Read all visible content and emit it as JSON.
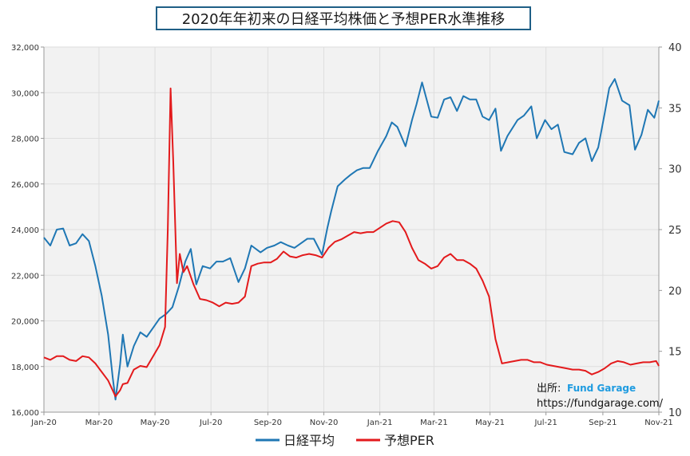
{
  "chart_data": {
    "type": "line",
    "title": "2020年年初来の日経平均株価と予想PER水準推移",
    "x_tick_labels": [
      "Jan-20",
      "Mar-20",
      "May-20",
      "Jul-20",
      "Sep-20",
      "Nov-20",
      "Jan-21",
      "Mar-21",
      "May-21",
      "Jul-21",
      "Sep-21",
      "Nov-21"
    ],
    "y_left": {
      "min": 16000,
      "max": 32000,
      "ticks": [
        "16,000",
        "18,000",
        "20,000",
        "22,000",
        "24,000",
        "26,000",
        "28,000",
        "30,000",
        "32,000"
      ]
    },
    "y_right": {
      "min": 10,
      "max": 40,
      "ticks": [
        "10",
        "15",
        "20",
        "25",
        "30",
        "35",
        "40"
      ]
    },
    "grid": true,
    "legend_position": "bottom",
    "series": [
      {
        "name": "日経平均",
        "color": "#1f77b4",
        "axis": "left",
        "points": [
          [
            "2020-01-01",
            23650
          ],
          [
            "2020-01-08",
            23300
          ],
          [
            "2020-01-15",
            24000
          ],
          [
            "2020-01-22",
            24050
          ],
          [
            "2020-01-29",
            23300
          ],
          [
            "2020-02-05",
            23400
          ],
          [
            "2020-02-12",
            23800
          ],
          [
            "2020-02-19",
            23500
          ],
          [
            "2020-02-26",
            22400
          ],
          [
            "2020-03-04",
            21100
          ],
          [
            "2020-03-11",
            19400
          ],
          [
            "2020-03-16",
            17500
          ],
          [
            "2020-03-19",
            16550
          ],
          [
            "2020-03-24",
            18100
          ],
          [
            "2020-03-27",
            19400
          ],
          [
            "2020-04-01",
            18000
          ],
          [
            "2020-04-08",
            18900
          ],
          [
            "2020-04-15",
            19500
          ],
          [
            "2020-04-22",
            19300
          ],
          [
            "2020-04-29",
            19700
          ],
          [
            "2020-05-06",
            20100
          ],
          [
            "2020-05-13",
            20300
          ],
          [
            "2020-05-20",
            20600
          ],
          [
            "2020-05-27",
            21500
          ],
          [
            "2020-06-03",
            22600
          ],
          [
            "2020-06-09",
            23150
          ],
          [
            "2020-06-15",
            21600
          ],
          [
            "2020-06-22",
            22400
          ],
          [
            "2020-06-30",
            22300
          ],
          [
            "2020-07-07",
            22600
          ],
          [
            "2020-07-14",
            22600
          ],
          [
            "2020-07-22",
            22750
          ],
          [
            "2020-07-31",
            21700
          ],
          [
            "2020-08-07",
            22300
          ],
          [
            "2020-08-14",
            23300
          ],
          [
            "2020-08-24",
            23000
          ],
          [
            "2020-08-31",
            23200
          ],
          [
            "2020-09-08",
            23300
          ],
          [
            "2020-09-15",
            23450
          ],
          [
            "2020-09-23",
            23300
          ],
          [
            "2020-09-30",
            23200
          ],
          [
            "2020-10-07",
            23400
          ],
          [
            "2020-10-14",
            23600
          ],
          [
            "2020-10-21",
            23600
          ],
          [
            "2020-10-30",
            22900
          ],
          [
            "2020-11-05",
            24100
          ],
          [
            "2020-11-09",
            24800
          ],
          [
            "2020-11-16",
            25900
          ],
          [
            "2020-11-24",
            26200
          ],
          [
            "2020-11-30",
            26400
          ],
          [
            "2020-12-07",
            26600
          ],
          [
            "2020-12-14",
            26700
          ],
          [
            "2020-12-21",
            26700
          ],
          [
            "2020-12-30",
            27450
          ],
          [
            "2021-01-08",
            28100
          ],
          [
            "2021-01-14",
            28700
          ],
          [
            "2021-01-20",
            28500
          ],
          [
            "2021-01-29",
            27650
          ],
          [
            "2021-02-05",
            28800
          ],
          [
            "2021-02-10",
            29500
          ],
          [
            "2021-02-16",
            30450
          ],
          [
            "2021-02-26",
            28950
          ],
          [
            "2021-03-05",
            28900
          ],
          [
            "2021-03-12",
            29700
          ],
          [
            "2021-03-19",
            29800
          ],
          [
            "2021-03-26",
            29200
          ],
          [
            "2021-04-02",
            29850
          ],
          [
            "2021-04-09",
            29700
          ],
          [
            "2021-04-16",
            29700
          ],
          [
            "2021-04-23",
            28950
          ],
          [
            "2021-04-30",
            28800
          ],
          [
            "2021-05-07",
            29300
          ],
          [
            "2021-05-13",
            27450
          ],
          [
            "2021-05-20",
            28100
          ],
          [
            "2021-05-31",
            28800
          ],
          [
            "2021-06-07",
            29000
          ],
          [
            "2021-06-15",
            29400
          ],
          [
            "2021-06-21",
            28000
          ],
          [
            "2021-06-30",
            28800
          ],
          [
            "2021-07-07",
            28400
          ],
          [
            "2021-07-14",
            28600
          ],
          [
            "2021-07-21",
            27400
          ],
          [
            "2021-07-30",
            27300
          ],
          [
            "2021-08-06",
            27800
          ],
          [
            "2021-08-13",
            28000
          ],
          [
            "2021-08-20",
            27000
          ],
          [
            "2021-08-27",
            27600
          ],
          [
            "2021-09-03",
            29100
          ],
          [
            "2021-09-08",
            30200
          ],
          [
            "2021-09-14",
            30600
          ],
          [
            "2021-09-22",
            29650
          ],
          [
            "2021-09-30",
            29450
          ],
          [
            "2021-10-06",
            27500
          ],
          [
            "2021-10-13",
            28150
          ],
          [
            "2021-10-20",
            29250
          ],
          [
            "2021-10-27",
            28900
          ],
          [
            "2021-11-01",
            29650
          ]
        ]
      },
      {
        "name": "予想PER",
        "color": "#e31a1c",
        "axis": "right",
        "points": [
          [
            "2020-01-01",
            14.5
          ],
          [
            "2020-01-08",
            14.3
          ],
          [
            "2020-01-15",
            14.6
          ],
          [
            "2020-01-22",
            14.6
          ],
          [
            "2020-01-29",
            14.3
          ],
          [
            "2020-02-05",
            14.2
          ],
          [
            "2020-02-12",
            14.6
          ],
          [
            "2020-02-19",
            14.5
          ],
          [
            "2020-02-26",
            14.0
          ],
          [
            "2020-03-04",
            13.3
          ],
          [
            "2020-03-11",
            12.6
          ],
          [
            "2020-03-19",
            11.3
          ],
          [
            "2020-03-24",
            11.8
          ],
          [
            "2020-03-27",
            12.3
          ],
          [
            "2020-04-01",
            12.4
          ],
          [
            "2020-04-08",
            13.5
          ],
          [
            "2020-04-15",
            13.8
          ],
          [
            "2020-04-22",
            13.7
          ],
          [
            "2020-04-29",
            14.6
          ],
          [
            "2020-05-06",
            15.5
          ],
          [
            "2020-05-12",
            17.0
          ],
          [
            "2020-05-15",
            25.0
          ],
          [
            "2020-05-18",
            36.6
          ],
          [
            "2020-05-21",
            30.5
          ],
          [
            "2020-05-25",
            20.6
          ],
          [
            "2020-05-28",
            23.0
          ],
          [
            "2020-06-01",
            21.5
          ],
          [
            "2020-06-05",
            22.0
          ],
          [
            "2020-06-12",
            20.5
          ],
          [
            "2020-06-19",
            19.3
          ],
          [
            "2020-06-26",
            19.2
          ],
          [
            "2020-07-03",
            19.0
          ],
          [
            "2020-07-10",
            18.7
          ],
          [
            "2020-07-17",
            19.0
          ],
          [
            "2020-07-24",
            18.9
          ],
          [
            "2020-07-31",
            19.0
          ],
          [
            "2020-08-07",
            19.5
          ],
          [
            "2020-08-14",
            22.0
          ],
          [
            "2020-08-21",
            22.2
          ],
          [
            "2020-08-28",
            22.3
          ],
          [
            "2020-09-04",
            22.3
          ],
          [
            "2020-09-11",
            22.6
          ],
          [
            "2020-09-18",
            23.2
          ],
          [
            "2020-09-25",
            22.8
          ],
          [
            "2020-10-02",
            22.7
          ],
          [
            "2020-10-09",
            22.9
          ],
          [
            "2020-10-16",
            23.0
          ],
          [
            "2020-10-23",
            22.9
          ],
          [
            "2020-10-30",
            22.7
          ],
          [
            "2020-11-06",
            23.5
          ],
          [
            "2020-11-13",
            24.0
          ],
          [
            "2020-11-20",
            24.2
          ],
          [
            "2020-11-27",
            24.5
          ],
          [
            "2020-12-04",
            24.8
          ],
          [
            "2020-12-11",
            24.7
          ],
          [
            "2020-12-18",
            24.8
          ],
          [
            "2020-12-25",
            24.8
          ],
          [
            "2021-01-08",
            25.5
          ],
          [
            "2021-01-15",
            25.7
          ],
          [
            "2021-01-22",
            25.6
          ],
          [
            "2021-01-29",
            24.8
          ],
          [
            "2021-02-05",
            23.5
          ],
          [
            "2021-02-12",
            22.5
          ],
          [
            "2021-02-19",
            22.2
          ],
          [
            "2021-02-26",
            21.8
          ],
          [
            "2021-03-05",
            22.0
          ],
          [
            "2021-03-12",
            22.7
          ],
          [
            "2021-03-19",
            23.0
          ],
          [
            "2021-03-26",
            22.5
          ],
          [
            "2021-04-02",
            22.5
          ],
          [
            "2021-04-09",
            22.2
          ],
          [
            "2021-04-16",
            21.8
          ],
          [
            "2021-04-23",
            20.8
          ],
          [
            "2021-04-30",
            19.5
          ],
          [
            "2021-05-07",
            16.0
          ],
          [
            "2021-05-14",
            14.0
          ],
          [
            "2021-05-21",
            14.1
          ],
          [
            "2021-05-28",
            14.2
          ],
          [
            "2021-06-04",
            14.3
          ],
          [
            "2021-06-11",
            14.3
          ],
          [
            "2021-06-18",
            14.1
          ],
          [
            "2021-06-25",
            14.1
          ],
          [
            "2021-07-02",
            13.9
          ],
          [
            "2021-07-09",
            13.8
          ],
          [
            "2021-07-16",
            13.7
          ],
          [
            "2021-07-23",
            13.6
          ],
          [
            "2021-07-30",
            13.5
          ],
          [
            "2021-08-06",
            13.5
          ],
          [
            "2021-08-13",
            13.4
          ],
          [
            "2021-08-20",
            13.1
          ],
          [
            "2021-08-27",
            13.3
          ],
          [
            "2021-09-03",
            13.6
          ],
          [
            "2021-09-10",
            14.0
          ],
          [
            "2021-09-17",
            14.2
          ],
          [
            "2021-09-24",
            14.1
          ],
          [
            "2021-10-01",
            13.9
          ],
          [
            "2021-10-08",
            14.0
          ],
          [
            "2021-10-15",
            14.1
          ],
          [
            "2021-10-22",
            14.1
          ],
          [
            "2021-10-29",
            14.2
          ],
          [
            "2021-11-01",
            13.8
          ]
        ]
      }
    ]
  },
  "source": {
    "label": "出所:",
    "brand": "Fund Garage",
    "url": "https://fundgarage.com/"
  },
  "legend": [
    {
      "label": "日経平均",
      "color": "#1f77b4"
    },
    {
      "label": "予想PER",
      "color": "#e31a1c"
    }
  ]
}
